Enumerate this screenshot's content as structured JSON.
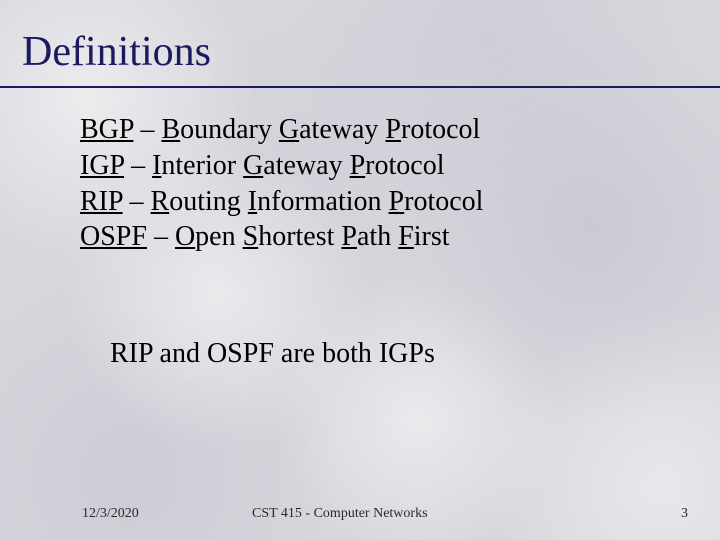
{
  "colors": {
    "title": "#1a1a60",
    "underline": "#1a1a60",
    "body_text": "#000000",
    "footer_text": "#2a2a2a",
    "background_base": "#d6d6dc"
  },
  "typography": {
    "title_fontsize": 42,
    "body_fontsize": 28,
    "footer_fontsize": 14,
    "font_family": "Times New Roman"
  },
  "title": "Definitions",
  "definitions": [
    {
      "acronym": "BGP",
      "sep": " – ",
      "w1a": "B",
      "w1b": "oundary ",
      "w2a": "G",
      "w2b": "ateway ",
      "w3a": "P",
      "w3b": "rotocol",
      "w4a": "",
      "w4b": ""
    },
    {
      "acronym": "IGP",
      "sep": " – ",
      "w1a": "I",
      "w1b": "nterior ",
      "w2a": "G",
      "w2b": "ateway ",
      "w3a": "P",
      "w3b": "rotocol",
      "w4a": "",
      "w4b": ""
    },
    {
      "acronym": "RIP",
      "sep": " – ",
      "w1a": "R",
      "w1b": "outing ",
      "w2a": "I",
      "w2b": "nformation ",
      "w3a": "P",
      "w3b": "rotocol",
      "w4a": "",
      "w4b": ""
    },
    {
      "acronym": "OSPF",
      "sep": " – ",
      "w1a": "O",
      "w1b": "pen ",
      "w2a": "S",
      "w2b": "hortest ",
      "w3a": "P",
      "w3b": "ath ",
      "w4a": "F",
      "w4b": "irst"
    }
  ],
  "note": "RIP and OSPF are both IGPs",
  "footer": {
    "date": "12/3/2020",
    "course": "CST 415 - Computer Networks",
    "page": "3"
  }
}
